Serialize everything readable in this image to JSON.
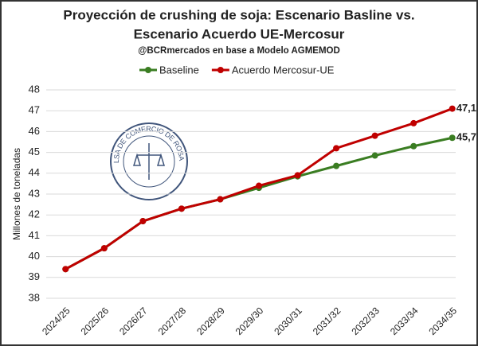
{
  "chart_data": {
    "type": "line",
    "title": [
      "Proyección de crushing de soja: Escenario Basline vs.",
      "Escenario Acuerdo UE-Mercosur"
    ],
    "subtitle": "@BCRmercados  en base a Modelo AGMEMOD",
    "y_label": "Millones de toneladas",
    "logo_text": "BOLSA DE COMERCIO DE ROSARIO",
    "categories": [
      "2024/25",
      "2025/26",
      "2026/27",
      "2027/28",
      "2028/29",
      "2029/30",
      "2030/31",
      "2031/32",
      "2032/33",
      "2033/34",
      "2034/35"
    ],
    "series": [
      {
        "name": "Baseline",
        "color": "#3a7d22",
        "values": [
          39.4,
          40.4,
          41.7,
          42.3,
          42.75,
          43.3,
          43.85,
          44.35,
          44.85,
          45.3,
          45.7
        ],
        "value_labels": [
          null,
          null,
          null,
          null,
          null,
          null,
          null,
          null,
          null,
          null,
          "45,7"
        ]
      },
      {
        "name": "Acuerdo Mercosur-UE",
        "color": "#c00000",
        "values": [
          39.4,
          40.4,
          41.7,
          42.3,
          42.75,
          43.4,
          43.9,
          45.2,
          45.8,
          46.4,
          47.1
        ],
        "value_labels": [
          null,
          null,
          null,
          null,
          null,
          null,
          null,
          null,
          null,
          null,
          "47,1"
        ]
      }
    ],
    "ylim": [
      38,
      48
    ],
    "yticks": [
      38,
      39,
      40,
      41,
      42,
      43,
      44,
      45,
      46,
      47,
      48
    ],
    "grid": true
  }
}
